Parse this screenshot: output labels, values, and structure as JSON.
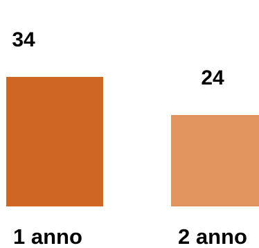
{
  "chart_data": {
    "type": "bar",
    "categories": [
      "1 anno",
      "2 anno"
    ],
    "values": [
      34,
      24
    ],
    "value_labels": [
      "34",
      "24"
    ],
    "colors": [
      "#d06623",
      "#e0955f"
    ],
    "title": "",
    "xlabel": "",
    "ylabel": "",
    "grid": false,
    "legend": "none"
  }
}
